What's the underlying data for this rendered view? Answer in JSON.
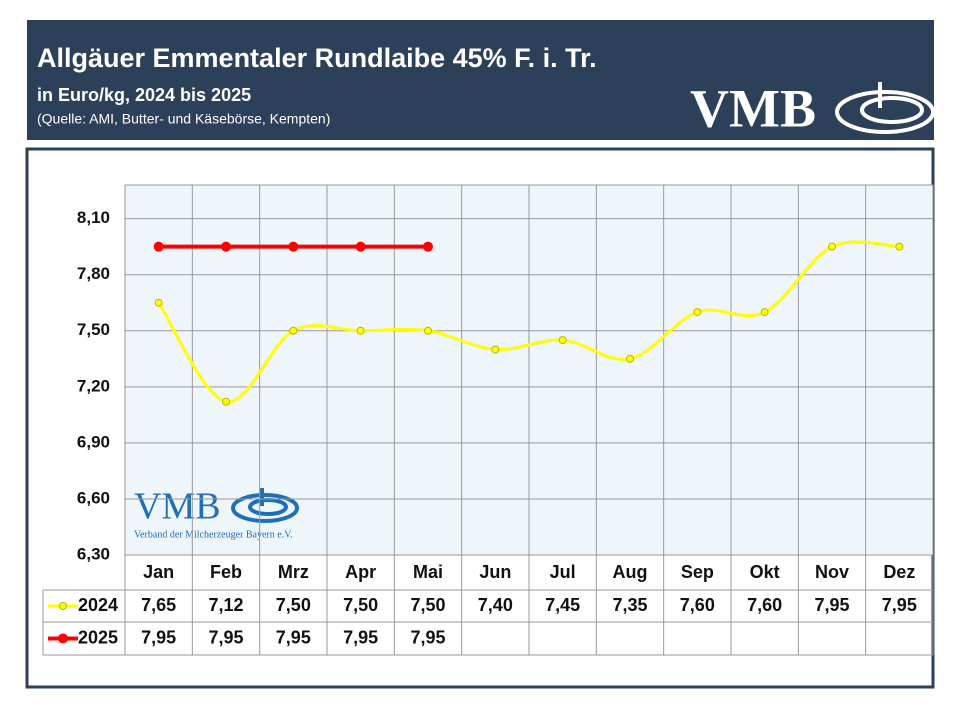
{
  "header": {
    "title": "Allgäuer Emmentaler Rundlaibe 45% F. i. Tr.",
    "subtitle": "in Euro/kg, 2024 bis 2025",
    "source": "(Quelle: AMI, Butter- und Käsebörse, Kempten)",
    "logo": "VMB"
  },
  "watermark": {
    "logo": "VMB",
    "caption": "Verband der Milcherzeuger Bayern e.V."
  },
  "chart_data": {
    "type": "line",
    "categories": [
      "Jan",
      "Feb",
      "Mrz",
      "Apr",
      "Mai",
      "Jun",
      "Jul",
      "Aug",
      "Sep",
      "Okt",
      "Nov",
      "Dez"
    ],
    "series": [
      {
        "name": "2024",
        "color": "#ffff00",
        "values": [
          7.65,
          7.12,
          7.5,
          7.5,
          7.5,
          7.4,
          7.45,
          7.35,
          7.6,
          7.6,
          7.95,
          7.95
        ],
        "value_labels": [
          "7,65",
          "7,12",
          "7,50",
          "7,50",
          "7,50",
          "7,40",
          "7,45",
          "7,35",
          "7,60",
          "7,60",
          "7,95",
          "7,95"
        ]
      },
      {
        "name": "2025",
        "color": "#ff0000",
        "values": [
          7.95,
          7.95,
          7.95,
          7.95,
          7.95,
          null,
          null,
          null,
          null,
          null,
          null,
          null
        ],
        "value_labels": [
          "7,95",
          "7,95",
          "7,95",
          "7,95",
          "7,95",
          null,
          null,
          null,
          null,
          null,
          null,
          null
        ]
      }
    ],
    "ylim": [
      6.3,
      8.28
    ],
    "yticks": [
      {
        "value": 6.3,
        "label": "6,30"
      },
      {
        "value": 6.6,
        "label": "6,60"
      },
      {
        "value": 6.9,
        "label": "6,90"
      },
      {
        "value": 7.2,
        "label": "7,20"
      },
      {
        "value": 7.5,
        "label": "7,50"
      },
      {
        "value": 7.8,
        "label": "7,80"
      },
      {
        "value": 8.1,
        "label": "8,10"
      }
    ],
    "grid": true
  }
}
